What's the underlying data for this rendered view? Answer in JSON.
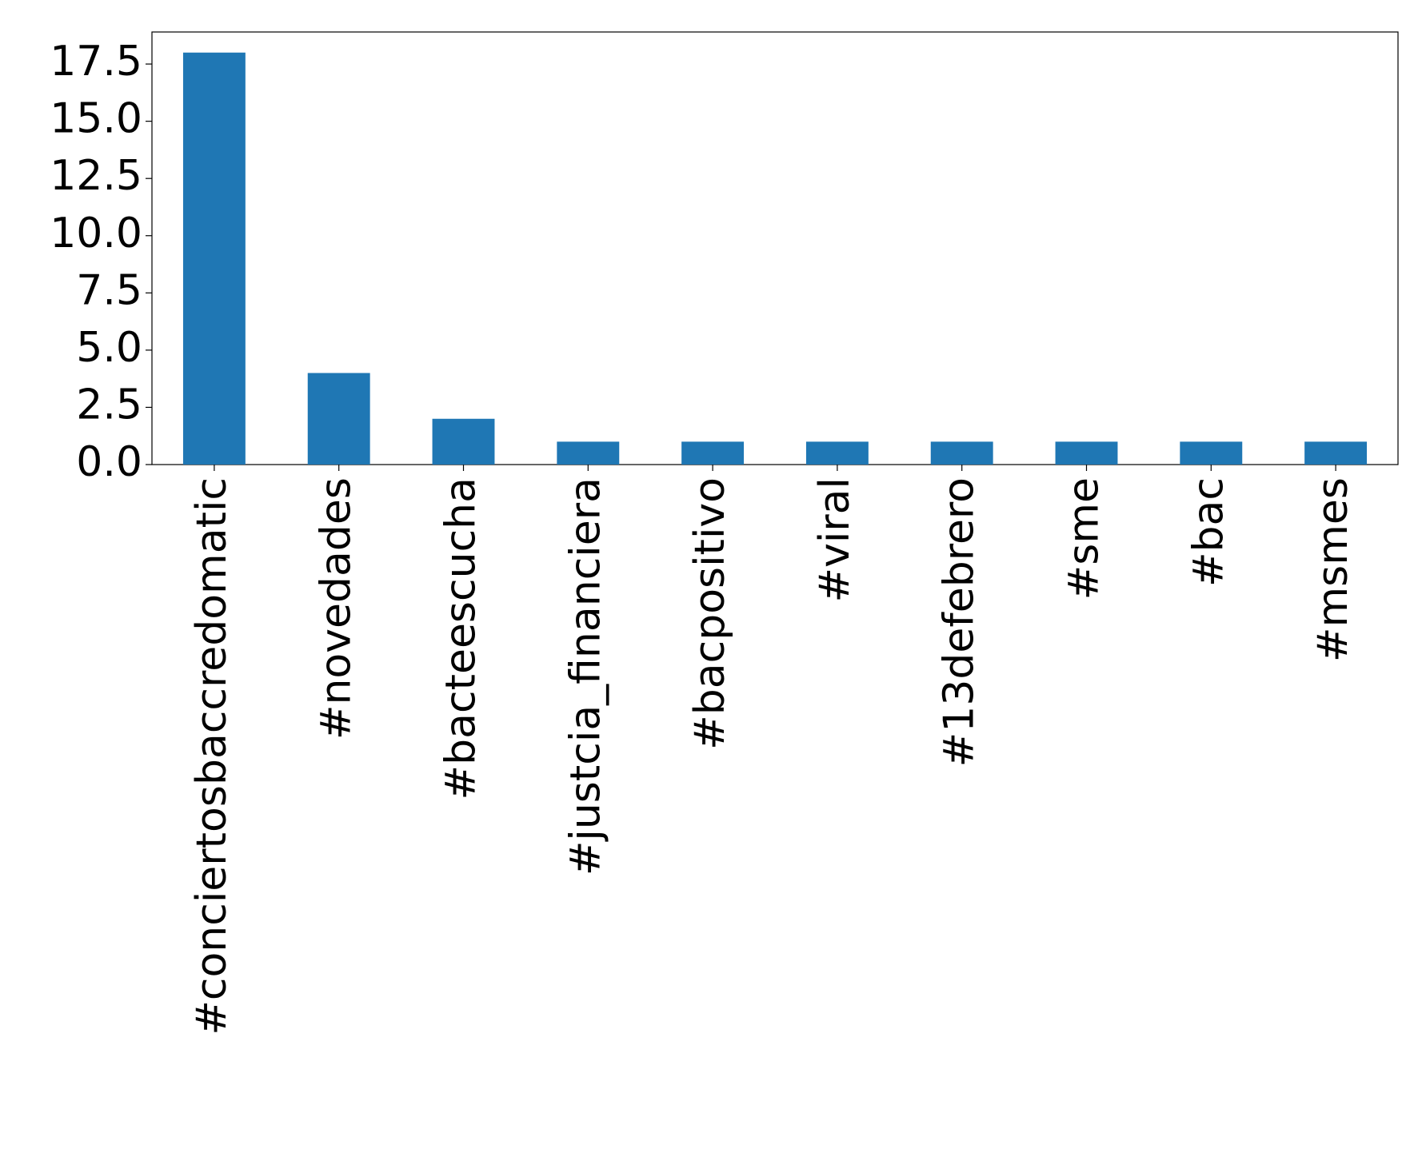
{
  "chart_data": {
    "type": "bar",
    "categories": [
      "#conciertosbaccredomatic",
      "#novedades",
      "#bacteescucha",
      "#justcia_financiera",
      "#bacpositivo",
      "#viral",
      "#13defebrero",
      "#sme",
      "#bac",
      "#msmes"
    ],
    "values": [
      18,
      4,
      2,
      1,
      1,
      1,
      1,
      1,
      1,
      1
    ],
    "color": "#1f77b4",
    "ylim": [
      0,
      18.9
    ],
    "yticks": [
      {
        "value": 0,
        "label": "0.0"
      },
      {
        "value": 2.5,
        "label": "2.5"
      },
      {
        "value": 5,
        "label": "5.0"
      },
      {
        "value": 7.5,
        "label": "7.5"
      },
      {
        "value": 10,
        "label": "10.0"
      },
      {
        "value": 12.5,
        "label": "12.5"
      },
      {
        "value": 15,
        "label": "15.0"
      },
      {
        "value": 17.5,
        "label": "17.5"
      }
    ],
    "grid": false
  }
}
